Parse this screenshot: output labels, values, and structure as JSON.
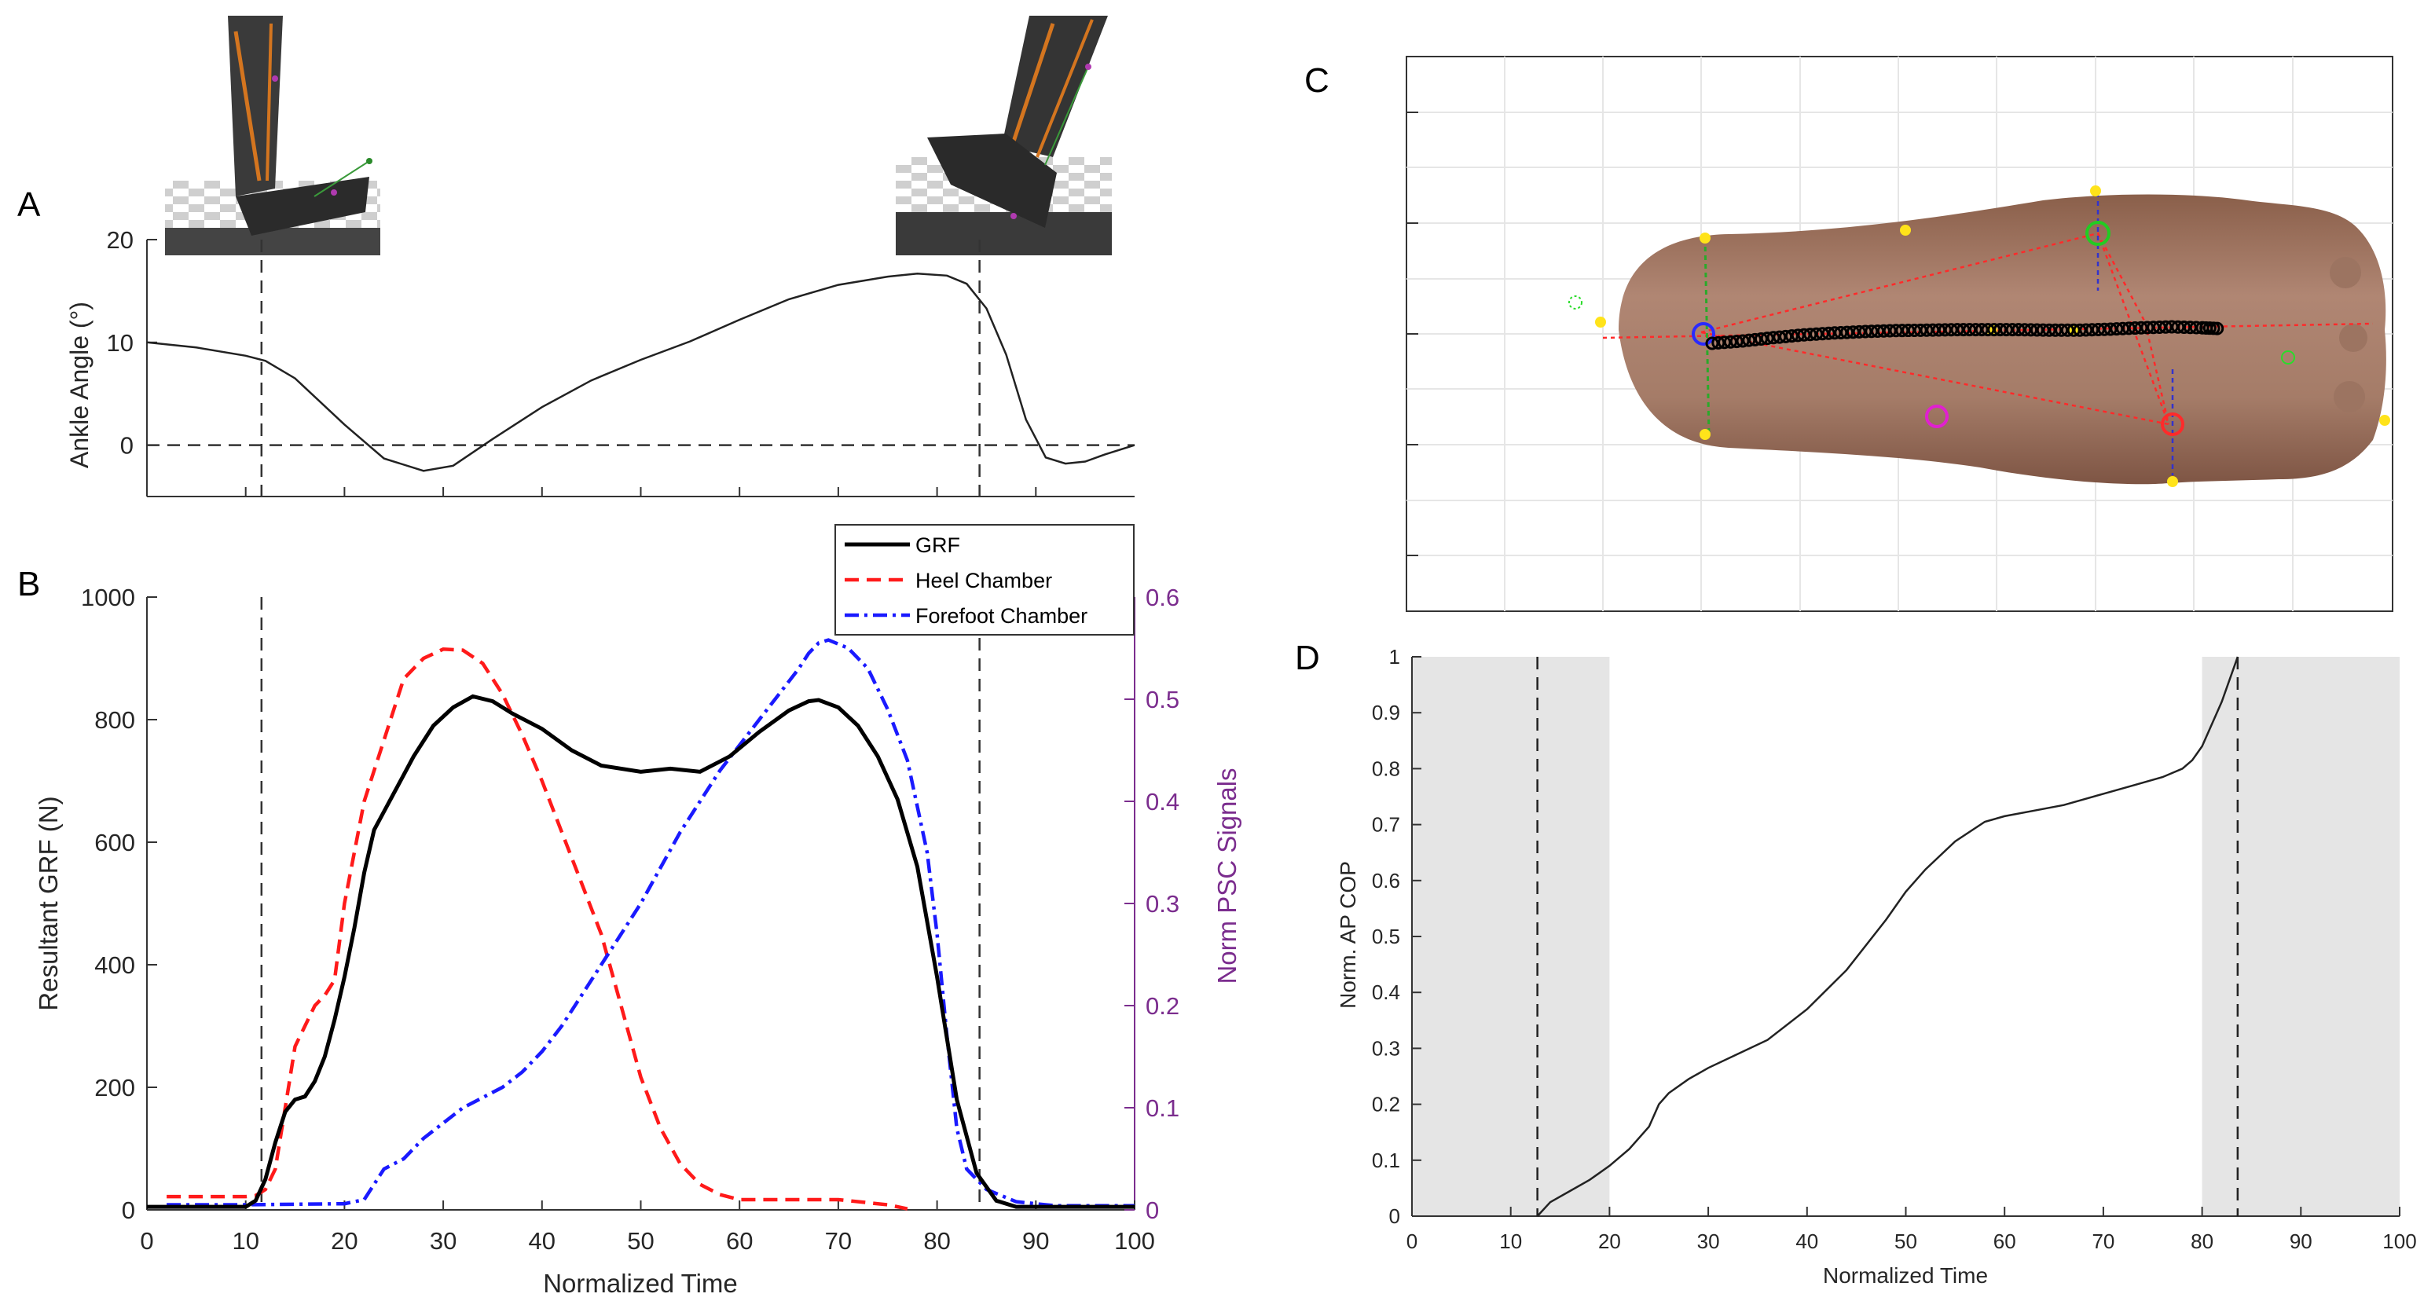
{
  "panel_labels": {
    "a": "A",
    "b": "B",
    "c": "C",
    "d": "D"
  },
  "colors": {
    "grf": "#000000",
    "heel": "#ff1a1a",
    "forefoot": "#1a1aff",
    "right_axis": "#7b2d8e",
    "shade": "#e5e5e5",
    "skin": "#a0755c",
    "cop": "#000000"
  },
  "chart_data": [
    {
      "id": "A",
      "type": "line",
      "title": "",
      "xlabel": "",
      "ylabel": "Ankle Angle (°)",
      "xlim": [
        0,
        100
      ],
      "ylim": [
        -5,
        20
      ],
      "yticks": [
        0,
        10,
        20
      ],
      "ytick_labels": [
        "0",
        "10",
        "20"
      ],
      "grid": false,
      "vlines": [
        11.6,
        84.3
      ],
      "hline": 0,
      "images": [
        {
          "name": "heel-strike-leg-image",
          "desc": "shoe at heel strike"
        },
        {
          "name": "toe-off-leg-image",
          "desc": "shoe at toe off"
        }
      ],
      "series": [
        {
          "name": "Ankle angle",
          "x": [
            0,
            5,
            10,
            12,
            15,
            20,
            24,
            28,
            31,
            35,
            40,
            45,
            50,
            55,
            60,
            65,
            70,
            75,
            78,
            81,
            83,
            85,
            87,
            89,
            91,
            93,
            95,
            97,
            100
          ],
          "y": [
            10,
            9.5,
            8.7,
            8.2,
            6.5,
            2,
            -1.3,
            -2.5,
            -2,
            0.6,
            3.7,
            6.3,
            8.3,
            10.1,
            12.2,
            14.2,
            15.6,
            16.4,
            16.7,
            16.5,
            15.7,
            13.3,
            8.8,
            2.5,
            -1.2,
            -1.8,
            -1.6,
            -0.9,
            0
          ]
        }
      ]
    },
    {
      "id": "B",
      "type": "line",
      "title": "",
      "xlabel": "Normalized Time",
      "ylabel": "Resultant GRF (N)",
      "y2label": "Norm PSC Signals",
      "xlim": [
        0,
        100
      ],
      "ylim": [
        0,
        1000
      ],
      "y2lim": [
        0,
        0.6
      ],
      "xticks": [
        0,
        10,
        20,
        30,
        40,
        50,
        60,
        70,
        80,
        90,
        100
      ],
      "xtick_labels": [
        "0",
        "10",
        "20",
        "30",
        "40",
        "50",
        "60",
        "70",
        "80",
        "90",
        "100"
      ],
      "yticks": [
        0,
        200,
        400,
        600,
        800,
        1000
      ],
      "ytick_labels": [
        "0",
        "200",
        "400",
        "600",
        "800",
        "1000"
      ],
      "y2ticks": [
        0,
        0.1,
        0.2,
        0.3,
        0.4,
        0.5,
        0.6
      ],
      "y2tick_labels": [
        "0",
        "0.1",
        "0.2",
        "0.3",
        "0.4",
        "0.5",
        "0.6"
      ],
      "grid": false,
      "vlines": [
        11.6,
        84.3
      ],
      "legend": {
        "position": "top-right",
        "entries": [
          "GRF",
          "Heel Chamber",
          "Forefoot Chamber"
        ]
      },
      "series": [
        {
          "name": "GRF",
          "axis": "left",
          "style": "solid",
          "x": [
            0,
            5,
            10,
            11,
            12,
            13,
            14,
            15,
            16,
            17,
            18,
            19,
            20,
            21,
            22,
            23,
            24,
            25,
            27,
            29,
            31,
            33,
            35,
            37,
            40,
            43,
            46,
            50,
            53,
            56,
            59,
            62,
            65,
            67,
            68,
            70,
            72,
            74,
            76,
            78,
            80,
            82,
            84,
            86,
            88,
            92,
            100
          ],
          "y": [
            5,
            5,
            5,
            15,
            50,
            110,
            160,
            180,
            185,
            210,
            250,
            310,
            380,
            460,
            550,
            620,
            650,
            680,
            740,
            790,
            820,
            838,
            830,
            810,
            785,
            750,
            725,
            715,
            720,
            715,
            740,
            780,
            815,
            830,
            832,
            820,
            790,
            740,
            670,
            560,
            380,
            180,
            60,
            15,
            5,
            5,
            5
          ]
        },
        {
          "name": "Heel Chamber",
          "axis": "right",
          "style": "dashed",
          "x": [
            2,
            10,
            11,
            12,
            13,
            14,
            15,
            16,
            17,
            18,
            19,
            20,
            22,
            24,
            26,
            28,
            30,
            32,
            34,
            36,
            38,
            40,
            42,
            44,
            46,
            48,
            50,
            52,
            54,
            56,
            58,
            60,
            65,
            70,
            75,
            77
          ],
          "y": [
            0.013,
            0.013,
            0.014,
            0.02,
            0.04,
            0.1,
            0.16,
            0.18,
            0.2,
            0.21,
            0.225,
            0.3,
            0.4,
            0.46,
            0.52,
            0.54,
            0.549,
            0.548,
            0.535,
            0.505,
            0.465,
            0.42,
            0.37,
            0.32,
            0.27,
            0.2,
            0.13,
            0.08,
            0.045,
            0.025,
            0.015,
            0.01,
            0.01,
            0.01,
            0.005,
            0.001
          ]
        },
        {
          "name": "Forefoot Chamber",
          "axis": "right",
          "style": "dashdot",
          "x": [
            2,
            10,
            20,
            22,
            24,
            26,
            28,
            30,
            32,
            34,
            36,
            38,
            40,
            42,
            44,
            46,
            48,
            50,
            52,
            54,
            56,
            58,
            60,
            62,
            64,
            66,
            67,
            68,
            69,
            71,
            73,
            75,
            77,
            79,
            80,
            81,
            82,
            83,
            85,
            88,
            92,
            100
          ],
          "y": [
            0.005,
            0.005,
            0.006,
            0.01,
            0.04,
            0.05,
            0.07,
            0.085,
            0.1,
            0.11,
            0.12,
            0.135,
            0.155,
            0.18,
            0.21,
            0.24,
            0.27,
            0.3,
            0.335,
            0.37,
            0.4,
            0.43,
            0.455,
            0.48,
            0.505,
            0.53,
            0.545,
            0.555,
            0.558,
            0.55,
            0.53,
            0.49,
            0.44,
            0.35,
            0.27,
            0.17,
            0.08,
            0.04,
            0.02,
            0.008,
            0.004,
            0.004
          ]
        }
      ]
    },
    {
      "id": "C",
      "type": "scatter",
      "title": "",
      "xlabel": "",
      "ylabel": "",
      "grid": true,
      "desc": "plantar foot image with centre-of-pressure trajectory",
      "x": [
        5,
        10,
        15,
        20,
        25,
        30,
        35,
        40,
        45,
        50,
        55,
        60,
        65,
        70,
        75,
        80,
        85,
        88
      ],
      "y": [
        0.0,
        0.05,
        0.12,
        0.18,
        0.22,
        0.25,
        0.27,
        0.28,
        0.29,
        0.29,
        0.29,
        0.28,
        0.28,
        0.3,
        0.33,
        0.35,
        0.33,
        0.31
      ]
    },
    {
      "id": "D",
      "type": "line",
      "title": "",
      "xlabel": "Normalized Time",
      "ylabel": "Norm. AP COP",
      "xlim": [
        0,
        100
      ],
      "ylim": [
        0,
        1
      ],
      "xticks": [
        0,
        10,
        20,
        30,
        40,
        50,
        60,
        70,
        80,
        90,
        100
      ],
      "xtick_labels": [
        "0",
        "10",
        "20",
        "30",
        "40",
        "50",
        "60",
        "70",
        "80",
        "90",
        "100"
      ],
      "yticks": [
        0,
        0.1,
        0.2,
        0.3,
        0.4,
        0.5,
        0.6,
        0.7,
        0.8,
        0.9,
        1
      ],
      "ytick_labels": [
        "0",
        "0.1",
        "0.2",
        "0.3",
        "0.4",
        "0.5",
        "0.6",
        "0.7",
        "0.8",
        "0.9",
        "1"
      ],
      "grid": false,
      "shaded_regions": [
        [
          0,
          20
        ],
        [
          80,
          100
        ]
      ],
      "vlines": [
        12.7,
        83.6
      ],
      "series": [
        {
          "name": "Norm. AP COP",
          "x": [
            12.7,
            14,
            16,
            18,
            20,
            22,
            24,
            25,
            26,
            28,
            30,
            33,
            36,
            40,
            44,
            48,
            50,
            52,
            55,
            58,
            60,
            63,
            66,
            70,
            73,
            76,
            78,
            79,
            80,
            81,
            82,
            83,
            83.6
          ],
          "y": [
            0,
            0.025,
            0.045,
            0.065,
            0.09,
            0.12,
            0.16,
            0.2,
            0.22,
            0.245,
            0.265,
            0.29,
            0.315,
            0.37,
            0.44,
            0.53,
            0.58,
            0.62,
            0.67,
            0.705,
            0.715,
            0.725,
            0.735,
            0.755,
            0.77,
            0.785,
            0.8,
            0.815,
            0.84,
            0.88,
            0.92,
            0.97,
            1.0
          ]
        }
      ]
    }
  ]
}
